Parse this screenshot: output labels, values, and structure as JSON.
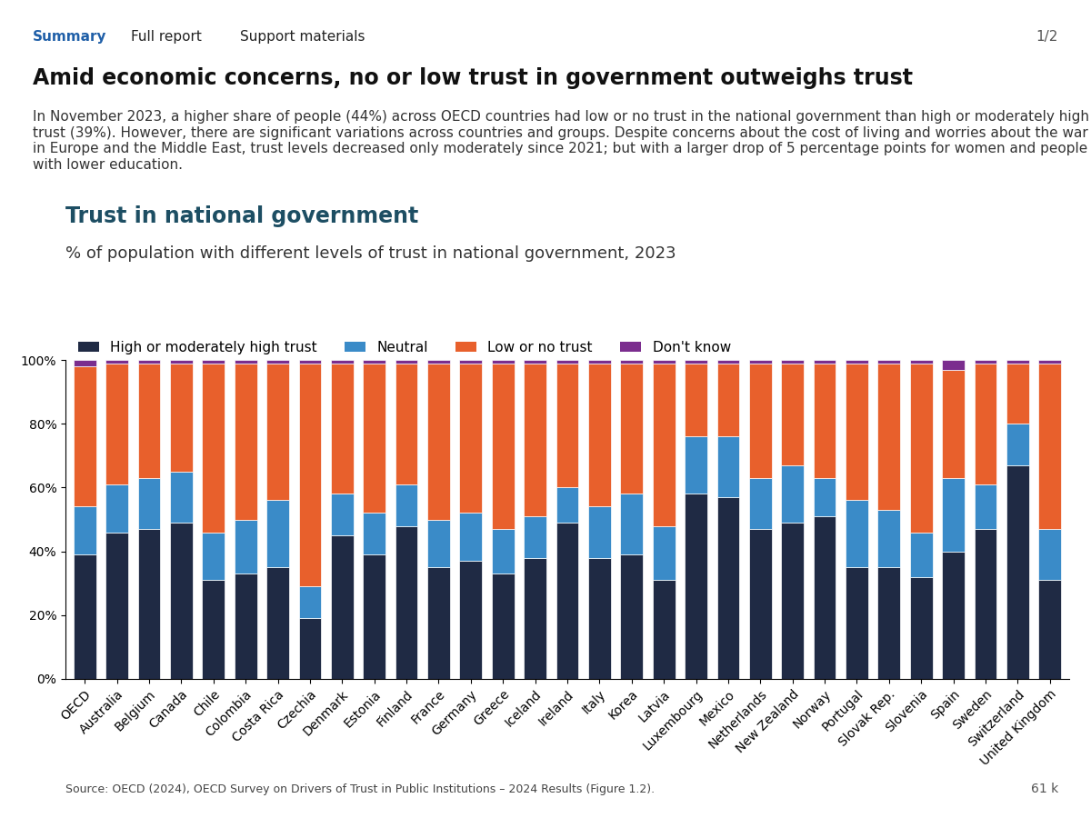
{
  "page": {
    "tabs": [
      "Summary",
      "Full report",
      "Support materials"
    ],
    "heading": "Amid economic concerns, no or low trust in government outweighs trust",
    "summary": "In November 2023, a higher share of people (44%) across OECD countries had low or no trust in the national government than high or moderately high trust (39%). However, there are significant variations across countries and groups. Despite concerns about the cost of living and worries about the war in Europe and the Middle East, trust levels decreased only moderately since 2021; but with a larger drop of 5 percentage points for women and people with lower education.",
    "pager": "1/2",
    "viewers": "61 k"
  },
  "chart_data": {
    "type": "bar",
    "stacked": true,
    "title": "Trust in national government",
    "subtitle": "% of population with different levels of trust in national government, 2023",
    "source": "Source: OECD (2024), OECD Survey on Drivers of Trust in Public Institutions – 2024 Results (Figure 1.2).",
    "categories": [
      "OECD",
      "Australia",
      "Belgium",
      "Canada",
      "Chile",
      "Colombia",
      "Costa Rica",
      "Czechia",
      "Denmark",
      "Estonia",
      "Finland",
      "France",
      "Germany",
      "Greece",
      "Iceland",
      "Ireland",
      "Italy",
      "Korea",
      "Latvia",
      "Luxembourg",
      "Mexico",
      "Netherlands",
      "New Zealand",
      "Norway",
      "Portugal",
      "Slovak Rep.",
      "Slovenia",
      "Spain",
      "Sweden",
      "Switzerland",
      "United Kingdom"
    ],
    "series": [
      {
        "name": "High or moderately high trust",
        "color": "#1f2a44",
        "values": [
          39,
          46,
          47,
          49,
          31,
          33,
          35,
          19,
          45,
          39,
          48,
          35,
          37,
          33,
          38,
          49,
          38,
          39,
          31,
          58,
          57,
          47,
          49,
          51,
          35,
          35,
          32,
          40,
          47,
          67,
          31
        ]
      },
      {
        "name": "Neutral",
        "color": "#3a8bc8",
        "values": [
          15,
          15,
          16,
          16,
          15,
          17,
          21,
          10,
          13,
          13,
          13,
          15,
          15,
          14,
          13,
          11,
          16,
          19,
          17,
          18,
          19,
          16,
          18,
          12,
          21,
          18,
          14,
          23,
          14,
          13,
          16
        ]
      },
      {
        "name": "Low or no trust",
        "color": "#e8602c",
        "values": [
          44,
          38,
          36,
          34,
          53,
          49,
          43,
          70,
          41,
          47,
          38,
          49,
          47,
          52,
          48,
          39,
          45,
          41,
          51,
          23,
          23,
          36,
          32,
          36,
          43,
          46,
          53,
          34,
          38,
          19,
          52
        ]
      },
      {
        "name": "Don't know",
        "color": "#7b2d8e",
        "values": [
          2,
          1,
          1,
          1,
          1,
          1,
          1,
          1,
          1,
          1,
          1,
          1,
          1,
          1,
          1,
          1,
          1,
          1,
          1,
          1,
          1,
          1,
          1,
          1,
          1,
          1,
          1,
          3,
          1,
          1,
          1
        ]
      }
    ],
    "ylim": [
      0,
      100
    ],
    "yticks": [
      {
        "value": 0,
        "label": "0%"
      },
      {
        "value": 20,
        "label": "20%"
      },
      {
        "value": 40,
        "label": "40%"
      },
      {
        "value": 60,
        "label": "60%"
      },
      {
        "value": 80,
        "label": "80%"
      },
      {
        "value": 100,
        "label": "100%"
      }
    ],
    "grid": false,
    "legend": "upper left"
  }
}
